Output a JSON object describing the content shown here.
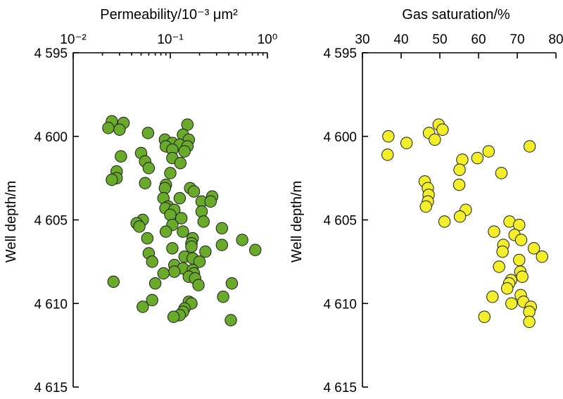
{
  "chart_data": [
    {
      "type": "scatter",
      "title": "",
      "xlabel": "Permeability/10⁻³ μm²",
      "ylabel": "Well depth/m",
      "x_scale": "log",
      "xlim": [
        0.01,
        1
      ],
      "ylim": [
        4595,
        4615
      ],
      "y_inverted": true,
      "x_axis_position": "top",
      "grid": false,
      "x_tick_labels": [
        "10⁻²",
        "10⁻¹",
        "10⁰"
      ],
      "x_ticks": [
        0.01,
        0.1,
        1
      ],
      "y_tick_labels": [
        "4 595",
        "4 600",
        "4 605",
        "4 610",
        "4 615"
      ],
      "y_ticks": [
        4595,
        4600,
        4605,
        4610,
        4615
      ],
      "marker_color": "#6aaa2a",
      "points": [
        {
          "x": 0.025,
          "y": 4599.1
        },
        {
          "x": 0.033,
          "y": 4599.2
        },
        {
          "x": 0.15,
          "y": 4599.3
        },
        {
          "x": 0.023,
          "y": 4599.5
        },
        {
          "x": 0.03,
          "y": 4599.6
        },
        {
          "x": 0.059,
          "y": 4599.8
        },
        {
          "x": 0.135,
          "y": 4599.9
        },
        {
          "x": 0.088,
          "y": 4600.2
        },
        {
          "x": 0.155,
          "y": 4600.2
        },
        {
          "x": 0.105,
          "y": 4600.4
        },
        {
          "x": 0.125,
          "y": 4600.5
        },
        {
          "x": 0.09,
          "y": 4600.6
        },
        {
          "x": 0.15,
          "y": 4600.6
        },
        {
          "x": 0.105,
          "y": 4600.8
        },
        {
          "x": 0.14,
          "y": 4600.9
        },
        {
          "x": 0.05,
          "y": 4601.0
        },
        {
          "x": 0.031,
          "y": 4601.2
        },
        {
          "x": 0.105,
          "y": 4601.3
        },
        {
          "x": 0.055,
          "y": 4601.5
        },
        {
          "x": 0.127,
          "y": 4601.6
        },
        {
          "x": 0.06,
          "y": 4601.9
        },
        {
          "x": 0.028,
          "y": 4602.1
        },
        {
          "x": 0.1,
          "y": 4602.2
        },
        {
          "x": 0.028,
          "y": 4602.5
        },
        {
          "x": 0.025,
          "y": 4602.6
        },
        {
          "x": 0.055,
          "y": 4602.8
        },
        {
          "x": 0.09,
          "y": 4602.9
        },
        {
          "x": 0.088,
          "y": 4603.1
        },
        {
          "x": 0.16,
          "y": 4603.1
        },
        {
          "x": 0.175,
          "y": 4603.3
        },
        {
          "x": 0.27,
          "y": 4603.6
        },
        {
          "x": 0.085,
          "y": 4603.7
        },
        {
          "x": 0.125,
          "y": 4603.7
        },
        {
          "x": 0.21,
          "y": 4603.9
        },
        {
          "x": 0.26,
          "y": 4603.9
        },
        {
          "x": 0.095,
          "y": 4604.2
        },
        {
          "x": 0.089,
          "y": 4604.3
        },
        {
          "x": 0.11,
          "y": 4604.4
        },
        {
          "x": 0.21,
          "y": 4604.5
        },
        {
          "x": 0.1,
          "y": 4604.7
        },
        {
          "x": 0.13,
          "y": 4604.9
        },
        {
          "x": 0.052,
          "y": 4605.0
        },
        {
          "x": 0.22,
          "y": 4605.1
        },
        {
          "x": 0.045,
          "y": 4605.2
        },
        {
          "x": 0.105,
          "y": 4605.3
        },
        {
          "x": 0.048,
          "y": 4605.4
        },
        {
          "x": 0.34,
          "y": 4605.5
        },
        {
          "x": 0.09,
          "y": 4605.7
        },
        {
          "x": 0.135,
          "y": 4605.7
        },
        {
          "x": 0.058,
          "y": 4606.1
        },
        {
          "x": 0.17,
          "y": 4606.1
        },
        {
          "x": 0.55,
          "y": 4606.2
        },
        {
          "x": 0.165,
          "y": 4606.4
        },
        {
          "x": 0.34,
          "y": 4606.5
        },
        {
          "x": 0.165,
          "y": 4606.6
        },
        {
          "x": 0.105,
          "y": 4606.7
        },
        {
          "x": 0.75,
          "y": 4606.8
        },
        {
          "x": 0.23,
          "y": 4606.9
        },
        {
          "x": 0.06,
          "y": 4607.0
        },
        {
          "x": 0.14,
          "y": 4607.2
        },
        {
          "x": 0.17,
          "y": 4607.3
        },
        {
          "x": 0.065,
          "y": 4607.5
        },
        {
          "x": 0.2,
          "y": 4607.5
        },
        {
          "x": 0.11,
          "y": 4607.7
        },
        {
          "x": 0.135,
          "y": 4607.9
        },
        {
          "x": 0.17,
          "y": 4608.0
        },
        {
          "x": 0.11,
          "y": 4608.1
        },
        {
          "x": 0.085,
          "y": 4608.2
        },
        {
          "x": 0.175,
          "y": 4608.2
        },
        {
          "x": 0.155,
          "y": 4608.4
        },
        {
          "x": 0.18,
          "y": 4608.5
        },
        {
          "x": 0.026,
          "y": 4608.7
        },
        {
          "x": 0.07,
          "y": 4608.8
        },
        {
          "x": 0.43,
          "y": 4608.8
        },
        {
          "x": 0.195,
          "y": 4608.9
        },
        {
          "x": 0.35,
          "y": 4609.6
        },
        {
          "x": 0.065,
          "y": 4609.8
        },
        {
          "x": 0.155,
          "y": 4609.9
        },
        {
          "x": 0.165,
          "y": 4610.0
        },
        {
          "x": 0.052,
          "y": 4610.2
        },
        {
          "x": 0.14,
          "y": 4610.3
        },
        {
          "x": 0.135,
          "y": 4610.5
        },
        {
          "x": 0.125,
          "y": 4610.7
        },
        {
          "x": 0.108,
          "y": 4610.8
        },
        {
          "x": 0.42,
          "y": 4611.0
        }
      ]
    },
    {
      "type": "scatter",
      "title": "",
      "xlabel": "Gas saturation/%",
      "ylabel": "Well depth/m",
      "x_scale": "linear",
      "xlim": [
        30,
        80
      ],
      "ylim": [
        4595,
        4615
      ],
      "y_inverted": true,
      "x_axis_position": "top",
      "grid": false,
      "x_ticks": [
        30,
        40,
        50,
        60,
        70,
        80
      ],
      "x_tick_labels": [
        "30",
        "40",
        "50",
        "60",
        "70",
        "80"
      ],
      "y_tick_labels": [
        "4 595",
        "4 600",
        "4 605",
        "4 610",
        "4 615"
      ],
      "y_ticks": [
        4595,
        4600,
        4605,
        4610,
        4615
      ],
      "marker_color": "#f2ee2a",
      "points": [
        {
          "x": 49.7,
          "y": 4599.3
        },
        {
          "x": 50.7,
          "y": 4599.6
        },
        {
          "x": 47.2,
          "y": 4599.8
        },
        {
          "x": 36.7,
          "y": 4600.0
        },
        {
          "x": 48.7,
          "y": 4600.2
        },
        {
          "x": 41.4,
          "y": 4600.4
        },
        {
          "x": 73.2,
          "y": 4600.6
        },
        {
          "x": 62.6,
          "y": 4600.9
        },
        {
          "x": 36.5,
          "y": 4601.1
        },
        {
          "x": 59.7,
          "y": 4601.3
        },
        {
          "x": 55.8,
          "y": 4601.4
        },
        {
          "x": 55.1,
          "y": 4602.0
        },
        {
          "x": 65.9,
          "y": 4602.2
        },
        {
          "x": 46.1,
          "y": 4602.7
        },
        {
          "x": 55.0,
          "y": 4602.9
        },
        {
          "x": 46.9,
          "y": 4603.1
        },
        {
          "x": 47.1,
          "y": 4603.5
        },
        {
          "x": 46.9,
          "y": 4603.9
        },
        {
          "x": 46.4,
          "y": 4604.2
        },
        {
          "x": 56.7,
          "y": 4604.4
        },
        {
          "x": 55.2,
          "y": 4604.8
        },
        {
          "x": 51.2,
          "y": 4605.1
        },
        {
          "x": 68.0,
          "y": 4605.1
        },
        {
          "x": 70.5,
          "y": 4605.3
        },
        {
          "x": 64.0,
          "y": 4605.7
        },
        {
          "x": 69.3,
          "y": 4605.9
        },
        {
          "x": 71.0,
          "y": 4606.2
        },
        {
          "x": 66.4,
          "y": 4606.5
        },
        {
          "x": 74.3,
          "y": 4606.7
        },
        {
          "x": 66.2,
          "y": 4606.9
        },
        {
          "x": 76.4,
          "y": 4607.2
        },
        {
          "x": 70.5,
          "y": 4607.4
        },
        {
          "x": 65.3,
          "y": 4607.8
        },
        {
          "x": 70.8,
          "y": 4608.1
        },
        {
          "x": 71.3,
          "y": 4608.4
        },
        {
          "x": 68.4,
          "y": 4608.6
        },
        {
          "x": 67.9,
          "y": 4608.8
        },
        {
          "x": 67.4,
          "y": 4609.1
        },
        {
          "x": 70.9,
          "y": 4609.5
        },
        {
          "x": 63.6,
          "y": 4609.6
        },
        {
          "x": 71.6,
          "y": 4609.9
        },
        {
          "x": 68.5,
          "y": 4610.0
        },
        {
          "x": 73.5,
          "y": 4610.2
        },
        {
          "x": 73.1,
          "y": 4610.5
        },
        {
          "x": 61.5,
          "y": 4610.8
        },
        {
          "x": 73.1,
          "y": 4611.1
        }
      ]
    }
  ]
}
